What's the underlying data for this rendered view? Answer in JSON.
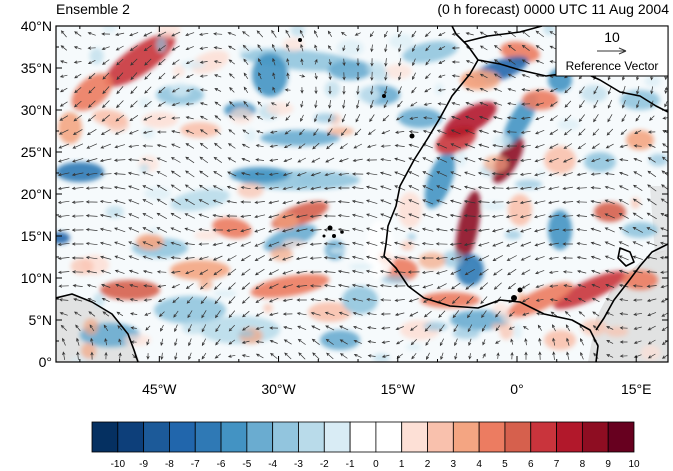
{
  "title_left": "Ensemble 2",
  "title_right": "(0 h forecast) 0000 UTC 11 Aug 2004",
  "lat_ticks": [
    {
      "lat": 40,
      "label": "40°N"
    },
    {
      "lat": 35,
      "label": "35°N"
    },
    {
      "lat": 30,
      "label": "30°N"
    },
    {
      "lat": 25,
      "label": "25°N"
    },
    {
      "lat": 20,
      "label": "20°N"
    },
    {
      "lat": 15,
      "label": "15°N"
    },
    {
      "lat": 10,
      "label": "10°N"
    },
    {
      "lat": 5,
      "label": "5°N"
    },
    {
      "lat": 0,
      "label": "0°"
    }
  ],
  "lon_ticks": [
    {
      "lon": -45,
      "label": "45°W"
    },
    {
      "lon": -30,
      "label": "30°W"
    },
    {
      "lon": -15,
      "label": "15°W"
    },
    {
      "lon": 0,
      "label": "0°"
    },
    {
      "lon": 15,
      "label": "15°E"
    }
  ],
  "map_extent": {
    "lon_min": -58,
    "lon_max": 19,
    "lat_min": 0,
    "lat_max": 40
  },
  "reference_vector": {
    "magnitude": "10",
    "label": "Reference Vector"
  },
  "colorbar": {
    "labels": [
      "-10",
      "-9",
      "-8",
      "-7",
      "-6",
      "-5",
      "-4",
      "-3",
      "-2",
      "-1",
      "0",
      "1",
      "2",
      "3",
      "4",
      "5",
      "6",
      "7",
      "8",
      "9",
      "10"
    ],
    "colors": [
      "#053061",
      "#0d3f7a",
      "#1c5a99",
      "#2166ac",
      "#2f79b5",
      "#4393c3",
      "#6aacd0",
      "#92c5de",
      "#b9dbea",
      "#d9ecf5",
      "#ffffff",
      "#ffffff",
      "#fde0d6",
      "#f9c1ad",
      "#f4a582",
      "#ec7c61",
      "#d6604d",
      "#c9343c",
      "#b2182b",
      "#8e0d22",
      "#67001f"
    ]
  },
  "colors": {
    "land_shade": "#d9d9d9",
    "coast": "#000000",
    "arrow": "#333333"
  }
}
